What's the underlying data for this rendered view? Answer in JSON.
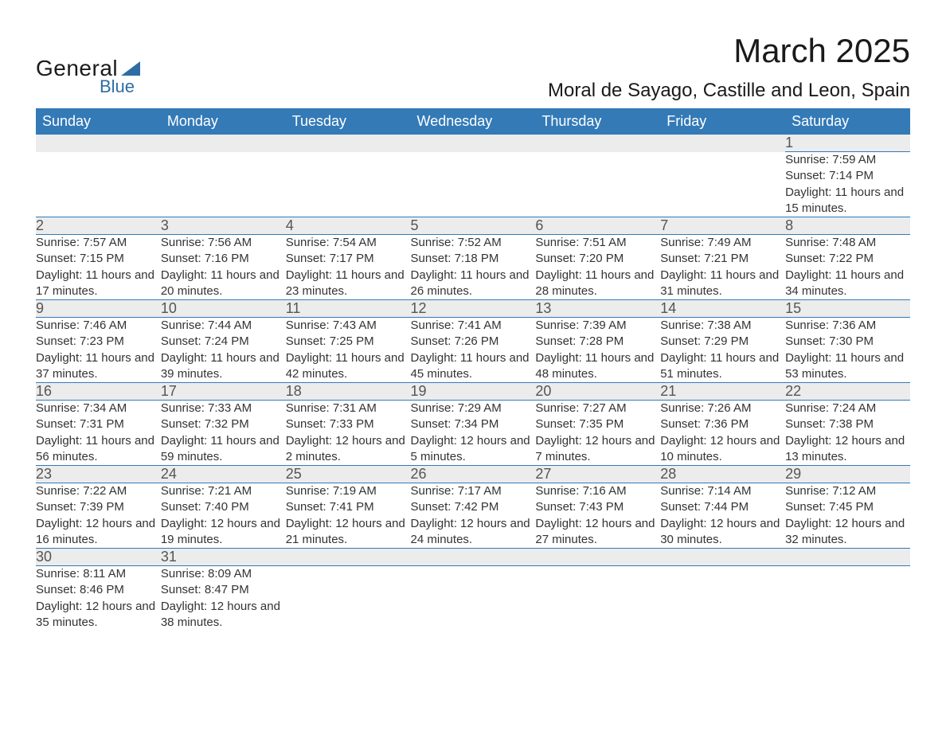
{
  "logo": {
    "text1": "General",
    "text2": "Blue"
  },
  "title": "March 2025",
  "subtitle": "Moral de Sayago, Castille and Leon, Spain",
  "columns": [
    "Sunday",
    "Monday",
    "Tuesday",
    "Wednesday",
    "Thursday",
    "Friday",
    "Saturday"
  ],
  "colors": {
    "header_bg": "#337ab7",
    "header_text": "#ffffff",
    "daynum_bg": "#ececec",
    "daynum_text": "#555555",
    "body_text": "#333333",
    "row_border": "#337ab7",
    "logo_accent": "#2e6da4",
    "page_bg": "#ffffff"
  },
  "typography": {
    "title_fontsize": 42,
    "subtitle_fontsize": 24,
    "header_fontsize": 18,
    "daynum_fontsize": 18,
    "data_fontsize": 15,
    "font_family": "Arial"
  },
  "weeks": [
    [
      null,
      null,
      null,
      null,
      null,
      null,
      {
        "n": "1",
        "sunrise": "Sunrise: 7:59 AM",
        "sunset": "Sunset: 7:14 PM",
        "daylight": "Daylight: 11 hours and 15 minutes."
      }
    ],
    [
      {
        "n": "2",
        "sunrise": "Sunrise: 7:57 AM",
        "sunset": "Sunset: 7:15 PM",
        "daylight": "Daylight: 11 hours and 17 minutes."
      },
      {
        "n": "3",
        "sunrise": "Sunrise: 7:56 AM",
        "sunset": "Sunset: 7:16 PM",
        "daylight": "Daylight: 11 hours and 20 minutes."
      },
      {
        "n": "4",
        "sunrise": "Sunrise: 7:54 AM",
        "sunset": "Sunset: 7:17 PM",
        "daylight": "Daylight: 11 hours and 23 minutes."
      },
      {
        "n": "5",
        "sunrise": "Sunrise: 7:52 AM",
        "sunset": "Sunset: 7:18 PM",
        "daylight": "Daylight: 11 hours and 26 minutes."
      },
      {
        "n": "6",
        "sunrise": "Sunrise: 7:51 AM",
        "sunset": "Sunset: 7:20 PM",
        "daylight": "Daylight: 11 hours and 28 minutes."
      },
      {
        "n": "7",
        "sunrise": "Sunrise: 7:49 AM",
        "sunset": "Sunset: 7:21 PM",
        "daylight": "Daylight: 11 hours and 31 minutes."
      },
      {
        "n": "8",
        "sunrise": "Sunrise: 7:48 AM",
        "sunset": "Sunset: 7:22 PM",
        "daylight": "Daylight: 11 hours and 34 minutes."
      }
    ],
    [
      {
        "n": "9",
        "sunrise": "Sunrise: 7:46 AM",
        "sunset": "Sunset: 7:23 PM",
        "daylight": "Daylight: 11 hours and 37 minutes."
      },
      {
        "n": "10",
        "sunrise": "Sunrise: 7:44 AM",
        "sunset": "Sunset: 7:24 PM",
        "daylight": "Daylight: 11 hours and 39 minutes."
      },
      {
        "n": "11",
        "sunrise": "Sunrise: 7:43 AM",
        "sunset": "Sunset: 7:25 PM",
        "daylight": "Daylight: 11 hours and 42 minutes."
      },
      {
        "n": "12",
        "sunrise": "Sunrise: 7:41 AM",
        "sunset": "Sunset: 7:26 PM",
        "daylight": "Daylight: 11 hours and 45 minutes."
      },
      {
        "n": "13",
        "sunrise": "Sunrise: 7:39 AM",
        "sunset": "Sunset: 7:28 PM",
        "daylight": "Daylight: 11 hours and 48 minutes."
      },
      {
        "n": "14",
        "sunrise": "Sunrise: 7:38 AM",
        "sunset": "Sunset: 7:29 PM",
        "daylight": "Daylight: 11 hours and 51 minutes."
      },
      {
        "n": "15",
        "sunrise": "Sunrise: 7:36 AM",
        "sunset": "Sunset: 7:30 PM",
        "daylight": "Daylight: 11 hours and 53 minutes."
      }
    ],
    [
      {
        "n": "16",
        "sunrise": "Sunrise: 7:34 AM",
        "sunset": "Sunset: 7:31 PM",
        "daylight": "Daylight: 11 hours and 56 minutes."
      },
      {
        "n": "17",
        "sunrise": "Sunrise: 7:33 AM",
        "sunset": "Sunset: 7:32 PM",
        "daylight": "Daylight: 11 hours and 59 minutes."
      },
      {
        "n": "18",
        "sunrise": "Sunrise: 7:31 AM",
        "sunset": "Sunset: 7:33 PM",
        "daylight": "Daylight: 12 hours and 2 minutes."
      },
      {
        "n": "19",
        "sunrise": "Sunrise: 7:29 AM",
        "sunset": "Sunset: 7:34 PM",
        "daylight": "Daylight: 12 hours and 5 minutes."
      },
      {
        "n": "20",
        "sunrise": "Sunrise: 7:27 AM",
        "sunset": "Sunset: 7:35 PM",
        "daylight": "Daylight: 12 hours and 7 minutes."
      },
      {
        "n": "21",
        "sunrise": "Sunrise: 7:26 AM",
        "sunset": "Sunset: 7:36 PM",
        "daylight": "Daylight: 12 hours and 10 minutes."
      },
      {
        "n": "22",
        "sunrise": "Sunrise: 7:24 AM",
        "sunset": "Sunset: 7:38 PM",
        "daylight": "Daylight: 12 hours and 13 minutes."
      }
    ],
    [
      {
        "n": "23",
        "sunrise": "Sunrise: 7:22 AM",
        "sunset": "Sunset: 7:39 PM",
        "daylight": "Daylight: 12 hours and 16 minutes."
      },
      {
        "n": "24",
        "sunrise": "Sunrise: 7:21 AM",
        "sunset": "Sunset: 7:40 PM",
        "daylight": "Daylight: 12 hours and 19 minutes."
      },
      {
        "n": "25",
        "sunrise": "Sunrise: 7:19 AM",
        "sunset": "Sunset: 7:41 PM",
        "daylight": "Daylight: 12 hours and 21 minutes."
      },
      {
        "n": "26",
        "sunrise": "Sunrise: 7:17 AM",
        "sunset": "Sunset: 7:42 PM",
        "daylight": "Daylight: 12 hours and 24 minutes."
      },
      {
        "n": "27",
        "sunrise": "Sunrise: 7:16 AM",
        "sunset": "Sunset: 7:43 PM",
        "daylight": "Daylight: 12 hours and 27 minutes."
      },
      {
        "n": "28",
        "sunrise": "Sunrise: 7:14 AM",
        "sunset": "Sunset: 7:44 PM",
        "daylight": "Daylight: 12 hours and 30 minutes."
      },
      {
        "n": "29",
        "sunrise": "Sunrise: 7:12 AM",
        "sunset": "Sunset: 7:45 PM",
        "daylight": "Daylight: 12 hours and 32 minutes."
      }
    ],
    [
      {
        "n": "30",
        "sunrise": "Sunrise: 8:11 AM",
        "sunset": "Sunset: 8:46 PM",
        "daylight": "Daylight: 12 hours and 35 minutes."
      },
      {
        "n": "31",
        "sunrise": "Sunrise: 8:09 AM",
        "sunset": "Sunset: 8:47 PM",
        "daylight": "Daylight: 12 hours and 38 minutes."
      },
      null,
      null,
      null,
      null,
      null
    ]
  ]
}
